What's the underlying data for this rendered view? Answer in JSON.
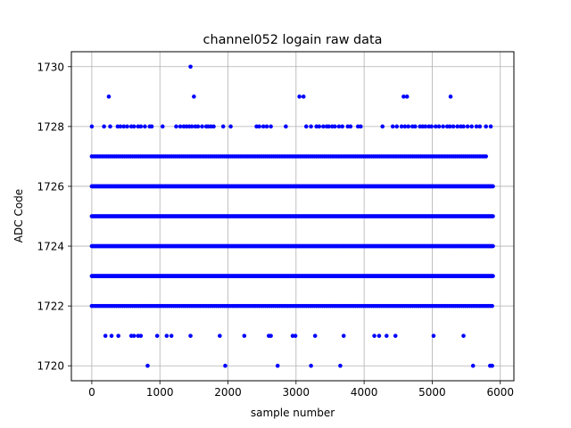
{
  "chart_data": {
    "type": "scatter",
    "title": "channel052 logain raw data",
    "xlabel": "sample number",
    "ylabel": "ADC Code",
    "xlim": [
      -300,
      6200
    ],
    "ylim": [
      1719.5,
      1730.5
    ],
    "xticks": [
      0,
      1000,
      2000,
      3000,
      4000,
      5000,
      6000
    ],
    "yticks": [
      1720,
      1722,
      1724,
      1726,
      1728,
      1730
    ],
    "grid": true,
    "marker_color": "#0000ff",
    "sample_count": 5900,
    "dense_levels": [
      1722,
      1723,
      1724,
      1725,
      1726,
      1727
    ],
    "sparse_points": [
      {
        "y": 1730,
        "x": [
          1450
        ]
      },
      {
        "y": 1729,
        "x": [
          250,
          1500,
          3050,
          3110,
          4580,
          4630,
          5270
        ]
      },
      {
        "y": 1728,
        "x": [
          0,
          180,
          270,
          380,
          420,
          470,
          520,
          580,
          620,
          680,
          720,
          780,
          850,
          880,
          1040,
          1240,
          1300,
          1350,
          1390,
          1430,
          1470,
          1520,
          1560,
          1620,
          1680,
          1710,
          1750,
          1790,
          1930,
          2040,
          2420,
          2460,
          2520,
          2570,
          2630,
          2850,
          3150,
          3220,
          3300,
          3340,
          3400,
          3450,
          3480,
          3530,
          3570,
          3630,
          3680,
          3760,
          3800,
          3910,
          3950,
          4270,
          4420,
          4480,
          4550,
          4600,
          4650,
          4710,
          4750,
          4820,
          4860,
          4900,
          4950,
          4990,
          5050,
          5100,
          5160,
          5220,
          5260,
          5310,
          5370,
          5420,
          5460,
          5520,
          5580,
          5650,
          5700,
          5790,
          5860
        ]
      },
      {
        "y": 1721,
        "x": [
          200,
          290,
          390,
          580,
          620,
          680,
          720,
          960,
          1100,
          1170,
          1450,
          1880,
          2240,
          2600,
          2630,
          2950,
          2990,
          3280,
          3700,
          4150,
          4220,
          4330,
          4460,
          5020,
          5460
        ]
      },
      {
        "y": 1720,
        "x": [
          820,
          1960,
          2730,
          3220,
          3650,
          5600,
          5850,
          5880
        ]
      }
    ]
  }
}
